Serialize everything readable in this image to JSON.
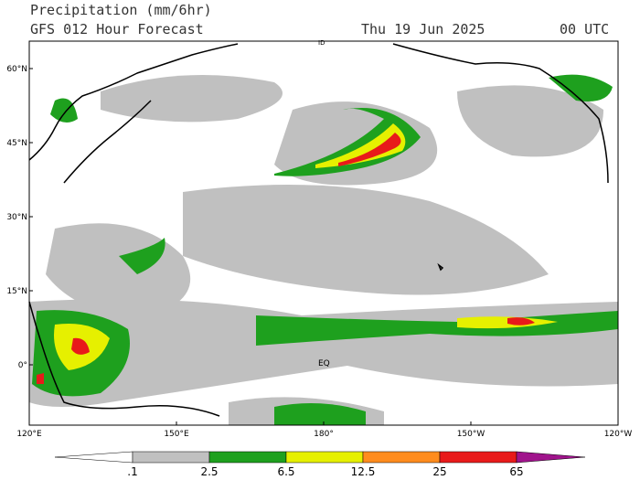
{
  "header": {
    "title": "Precipitation (mm/6hr)",
    "model": "GFS 012 Hour Forecast",
    "date": "Thu 19 Jun 2025",
    "time": "00 UTC"
  },
  "map": {
    "lat_labels": [
      "60°N",
      "45°N",
      "30°N",
      "15°N",
      "0°"
    ],
    "lon_labels": [
      "120°E",
      "150°E",
      "180°",
      "150°W",
      "120°W"
    ],
    "equator_label": "EQ",
    "marker_label": "ID"
  },
  "colorbar": {
    "labels": [
      ".1",
      "2.5",
      "6.5",
      "12.5",
      "25",
      "65"
    ],
    "colors": [
      "#ffffff",
      "#c0c0c0",
      "#1ea01e",
      "#e6f000",
      "#ff8c1e",
      "#e81a1a",
      "#a0148c"
    ]
  }
}
